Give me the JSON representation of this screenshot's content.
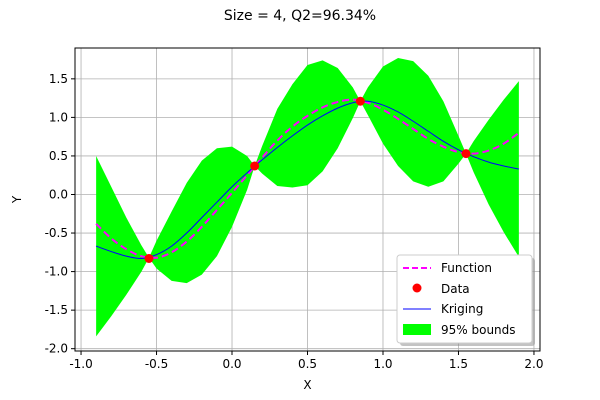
{
  "chart_data": {
    "type": "line",
    "title": "Size = 4, Q2=96.34%",
    "xlabel": "X",
    "ylabel": "Y",
    "xlim": [
      -1.04,
      2.04
    ],
    "ylim": [
      -2.03,
      1.9
    ],
    "grid": true,
    "xticks": [
      "-1.0",
      "-0.5",
      "0.0",
      "0.5",
      "1.0",
      "1.5",
      "2.0"
    ],
    "xtick_values": [
      -1.0,
      -0.5,
      0.0,
      0.5,
      1.0,
      1.5,
      2.0
    ],
    "yticks": [
      "-2.0",
      "-1.5",
      "-1.0",
      "-0.5",
      "0.0",
      "0.5",
      "1.0",
      "1.5"
    ],
    "ytick_values": [
      -2.0,
      -1.5,
      -1.0,
      -0.5,
      0.0,
      0.5,
      1.0,
      1.5
    ],
    "legend_position": "lower-right",
    "legend": [
      "Function",
      "Data",
      "Kriging",
      "95% bounds"
    ],
    "colors": {
      "function": "#ff00ff",
      "data": "#ff0000",
      "kriging": "#0000ff",
      "bounds": "#00ff00"
    },
    "function": {
      "x": [
        -0.9,
        -0.8,
        -0.7,
        -0.6,
        -0.5,
        -0.4,
        -0.3,
        -0.2,
        -0.1,
        0.0,
        0.1,
        0.2,
        0.3,
        0.4,
        0.5,
        0.6,
        0.7,
        0.8,
        0.9,
        1.0,
        1.1,
        1.2,
        1.3,
        1.4,
        1.5,
        1.6,
        1.7,
        1.8,
        1.9
      ],
      "y": [
        -0.38,
        -0.57,
        -0.71,
        -0.8,
        -0.82,
        -0.75,
        -0.61,
        -0.42,
        -0.2,
        0.02,
        0.25,
        0.48,
        0.7,
        0.88,
        1.02,
        1.13,
        1.2,
        1.23,
        1.19,
        1.1,
        0.98,
        0.85,
        0.72,
        0.62,
        0.55,
        0.53,
        0.57,
        0.66,
        0.8
      ]
    },
    "data": {
      "x": [
        -0.55,
        0.15,
        0.85,
        1.55
      ],
      "y": [
        -0.83,
        0.37,
        1.21,
        0.53
      ]
    },
    "kriging": {
      "x": [
        -0.9,
        -0.8,
        -0.7,
        -0.6,
        -0.5,
        -0.4,
        -0.3,
        -0.2,
        -0.1,
        0.0,
        0.1,
        0.2,
        0.3,
        0.4,
        0.5,
        0.6,
        0.7,
        0.8,
        0.9,
        1.0,
        1.1,
        1.2,
        1.3,
        1.4,
        1.5,
        1.6,
        1.7,
        1.8,
        1.9
      ],
      "y": [
        -0.67,
        -0.74,
        -0.8,
        -0.83,
        -0.78,
        -0.67,
        -0.5,
        -0.3,
        -0.1,
        0.1,
        0.28,
        0.45,
        0.61,
        0.76,
        0.9,
        1.02,
        1.12,
        1.19,
        1.21,
        1.16,
        1.07,
        0.95,
        0.82,
        0.69,
        0.58,
        0.49,
        0.42,
        0.37,
        0.33
      ]
    },
    "bounds": {
      "x": [
        -0.9,
        -0.8,
        -0.7,
        -0.6,
        -0.55,
        -0.5,
        -0.4,
        -0.3,
        -0.2,
        -0.1,
        0.0,
        0.1,
        0.15,
        0.2,
        0.3,
        0.4,
        0.5,
        0.6,
        0.7,
        0.8,
        0.85,
        0.9,
        1.0,
        1.1,
        1.2,
        1.3,
        1.4,
        1.5,
        1.55,
        1.6,
        1.7,
        1.8,
        1.9
      ],
      "upper": [
        0.5,
        0.1,
        -0.3,
        -0.66,
        -0.82,
        -0.6,
        -0.22,
        0.15,
        0.44,
        0.6,
        0.62,
        0.5,
        0.37,
        0.63,
        1.11,
        1.43,
        1.68,
        1.74,
        1.64,
        1.39,
        1.21,
        1.39,
        1.66,
        1.77,
        1.73,
        1.54,
        1.21,
        0.76,
        0.53,
        0.69,
        0.97,
        1.23,
        1.47
      ],
      "lower": [
        -1.84,
        -1.58,
        -1.3,
        -1.0,
        -0.82,
        -0.96,
        -1.12,
        -1.15,
        -1.04,
        -0.8,
        -0.42,
        0.06,
        0.37,
        0.27,
        0.11,
        0.09,
        0.12,
        0.3,
        0.6,
        0.99,
        1.21,
        1.03,
        0.66,
        0.37,
        0.17,
        0.1,
        0.17,
        0.4,
        0.53,
        0.29,
        -0.13,
        -0.49,
        -0.81
      ]
    }
  }
}
